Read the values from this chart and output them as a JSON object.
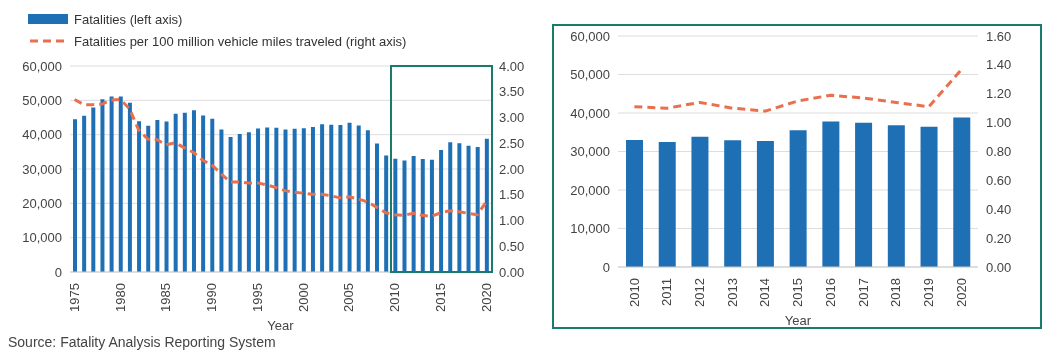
{
  "chart_data": [
    {
      "type": "bar",
      "xlabel": "Year",
      "legend": "top left",
      "grid": "y",
      "categories": [
        "1975",
        null,
        null,
        null,
        null,
        "1980",
        null,
        null,
        null,
        null,
        "1985",
        null,
        null,
        null,
        null,
        "1990",
        null,
        null,
        null,
        null,
        "1995",
        null,
        null,
        null,
        null,
        "2000",
        null,
        null,
        null,
        null,
        "2005",
        null,
        null,
        null,
        null,
        "2010",
        null,
        null,
        null,
        null,
        "2015",
        null,
        null,
        null,
        null,
        "2020"
      ],
      "series": [
        {
          "name": "Fatalities (left axis)",
          "color": "#1f6fb4",
          "values": [
            44500,
            45500,
            47900,
            50300,
            51100,
            51100,
            49300,
            43900,
            42600,
            44300,
            43800,
            46100,
            46400,
            47100,
            45600,
            44600,
            41500,
            39300,
            40200,
            40700,
            41800,
            42100,
            42000,
            41500,
            41700,
            41900,
            42200,
            43000,
            42900,
            42800,
            43500,
            42700,
            41300,
            37400,
            33900,
            33000,
            32500,
            33800,
            32900,
            32700,
            35500,
            37800,
            37500,
            36800,
            36400,
            38800
          ]
        },
        {
          "name": "Fatalities per 100 million vehicle miles traveled (right axis)",
          "type": "line",
          "axis": "y2",
          "line_style": "dashed",
          "color": "#e8704f",
          "values": [
            3.35,
            3.25,
            3.25,
            3.26,
            3.34,
            3.35,
            3.17,
            2.76,
            2.58,
            2.57,
            2.47,
            2.51,
            2.41,
            2.32,
            2.17,
            2.08,
            1.91,
            1.75,
            1.75,
            1.73,
            1.73,
            1.69,
            1.64,
            1.58,
            1.55,
            1.53,
            1.51,
            1.51,
            1.48,
            1.44,
            1.46,
            1.42,
            1.36,
            1.26,
            1.15,
            1.11,
            1.1,
            1.14,
            1.1,
            1.08,
            1.15,
            1.19,
            1.17,
            1.14,
            1.11,
            1.37
          ]
        }
      ],
      "ylim": [
        0,
        60000
      ],
      "yticks": [
        0,
        {
          "value": 10000,
          "label": "10,000"
        },
        {
          "value": 20000,
          "label": "20,000"
        },
        {
          "value": 30000,
          "label": "30,000"
        },
        {
          "value": 40000,
          "label": "40,000"
        },
        {
          "value": 50000,
          "label": "50,000"
        },
        {
          "value": 60000,
          "label": "60,000"
        }
      ],
      "y2lim": [
        0,
        4
      ],
      "y2ticks": [
        {
          "value": 0,
          "label": "0.00"
        },
        {
          "value": 0.5,
          "label": "0.50"
        },
        {
          "value": 1,
          "label": "1.00"
        },
        {
          "value": 1.5,
          "label": "1.50"
        },
        {
          "value": 2,
          "label": "2.00"
        },
        {
          "value": 2.5,
          "label": "2.50"
        },
        {
          "value": 3,
          "label": "3.00"
        },
        {
          "value": 3.5,
          "label": "3.50"
        },
        {
          "value": 4,
          "label": "4.00"
        }
      ],
      "annotations": [
        "Source: Fatality Analysis Reporting System"
      ]
    },
    {
      "type": "bar",
      "xlabel": "Year",
      "grid": "y",
      "categories": [
        "2010",
        "2011",
        "2012",
        "2013",
        "2014",
        "2015",
        "2016",
        "2017",
        "2018",
        "2019",
        "2020"
      ],
      "series": [
        {
          "color": "#1f6fb4",
          "values": [
            33000,
            32500,
            33800,
            32900,
            32700,
            35500,
            37800,
            37500,
            36800,
            36400,
            38800
          ]
        },
        {
          "type": "line",
          "axis": "y2",
          "line_style": "dashed",
          "color": "#e8704f",
          "values": [
            1.11,
            1.1,
            1.14,
            1.1,
            1.08,
            1.15,
            1.19,
            1.17,
            1.14,
            1.11,
            1.37
          ]
        }
      ],
      "ylim": [
        0,
        60000
      ],
      "yticks": [
        0,
        {
          "value": 10000,
          "label": "10,000"
        },
        {
          "value": 20000,
          "label": "20,000"
        },
        {
          "value": 30000,
          "label": "30,000"
        },
        {
          "value": 40000,
          "label": "40,000"
        },
        {
          "value": 50000,
          "label": "50,000"
        },
        {
          "value": 60000,
          "label": "60,000"
        }
      ],
      "y2lim": [
        0,
        1.6
      ],
      "y2ticks": [
        {
          "value": 0,
          "label": "0.00"
        },
        {
          "value": 0.2,
          "label": "0.20"
        },
        {
          "value": 0.4,
          "label": "0.40"
        },
        {
          "value": 0.6,
          "label": "0.60"
        },
        {
          "value": 0.8,
          "label": "0.80"
        },
        {
          "value": 1,
          "label": "1.00"
        },
        {
          "value": 1.2,
          "label": "1.20"
        },
        {
          "value": 1.4,
          "label": "1.40"
        },
        {
          "value": 1.6,
          "label": "1.60"
        }
      ]
    }
  ]
}
